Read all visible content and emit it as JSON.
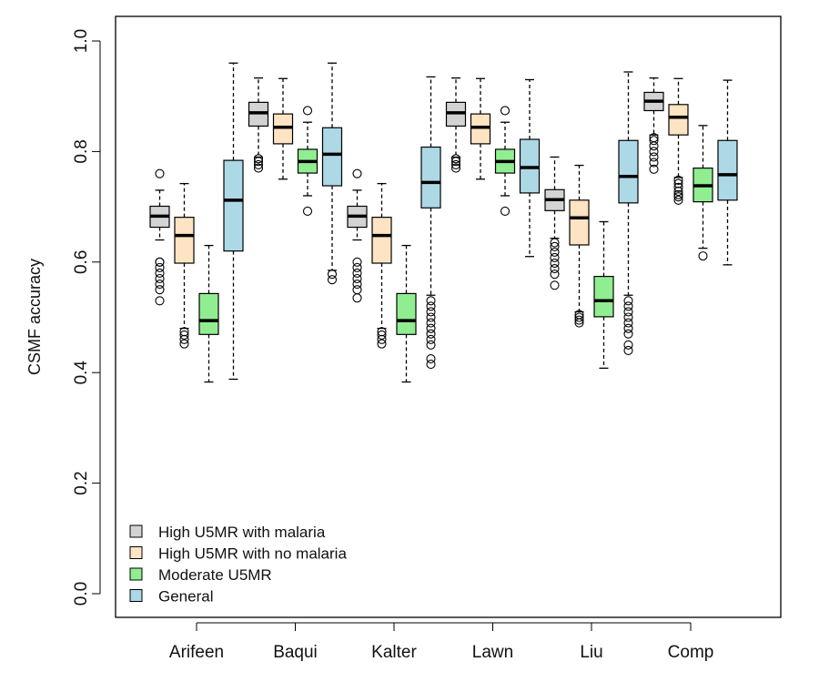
{
  "chart_data": {
    "type": "boxplot",
    "ylabel": "CSMF accuracy",
    "ylim": [
      -0.04,
      1.04
    ],
    "yticks": [
      {
        "value": 0.0,
        "label": "0.0"
      },
      {
        "value": 0.2,
        "label": "0.2"
      },
      {
        "value": 0.4,
        "label": "0.4"
      },
      {
        "value": 0.6,
        "label": "0.6"
      },
      {
        "value": 0.8,
        "label": "0.8"
      },
      {
        "value": 1.0,
        "label": "1.0"
      }
    ],
    "categories": [
      "Arifeen",
      "Baqui",
      "Kalter",
      "Lawn",
      "Liu",
      "Comp"
    ],
    "legend_position": "bottom-left",
    "series": [
      {
        "name": "High U5MR with malaria",
        "color": "#d3d3d3",
        "boxes": [
          {
            "min": 0.64,
            "q1": 0.663,
            "median": 0.683,
            "q3": 0.701,
            "max": 0.73,
            "outliers": [
              0.53,
              0.55,
              0.56,
              0.57,
              0.58,
              0.59,
              0.6,
              0.6,
              0.76
            ]
          },
          {
            "min": 0.79,
            "q1": 0.846,
            "median": 0.87,
            "q3": 0.889,
            "max": 0.933,
            "outliers": [
              0.77,
              0.776,
              0.782,
              0.787
            ]
          },
          {
            "min": 0.64,
            "q1": 0.663,
            "median": 0.683,
            "q3": 0.701,
            "max": 0.73,
            "outliers": [
              0.535,
              0.55,
              0.56,
              0.57,
              0.58,
              0.59,
              0.6,
              0.76
            ]
          },
          {
            "min": 0.79,
            "q1": 0.846,
            "median": 0.87,
            "q3": 0.889,
            "max": 0.933,
            "outliers": [
              0.77,
              0.776,
              0.782,
              0.787
            ]
          },
          {
            "min": 0.643,
            "q1": 0.693,
            "median": 0.713,
            "q3": 0.731,
            "max": 0.79,
            "outliers": [
              0.558,
              0.578,
              0.588,
              0.598,
              0.608,
              0.618,
              0.628,
              0.635
            ]
          },
          {
            "min": 0.83,
            "q1": 0.874,
            "median": 0.891,
            "q3": 0.907,
            "max": 0.933,
            "outliers": [
              0.768,
              0.78,
              0.79,
              0.8,
              0.81,
              0.82,
              0.825
            ]
          }
        ]
      },
      {
        "name": "High U5MR with no malaria",
        "color": "#ffe4c4",
        "boxes": [
          {
            "min": 0.48,
            "q1": 0.598,
            "median": 0.648,
            "q3": 0.681,
            "max": 0.742,
            "outliers": [
              0.452,
              0.46,
              0.468,
              0.474
            ]
          },
          {
            "min": 0.75,
            "q1": 0.814,
            "median": 0.844,
            "q3": 0.868,
            "max": 0.932,
            "outliers": []
          },
          {
            "min": 0.48,
            "q1": 0.598,
            "median": 0.648,
            "q3": 0.681,
            "max": 0.742,
            "outliers": [
              0.452,
              0.46,
              0.468,
              0.474
            ]
          },
          {
            "min": 0.75,
            "q1": 0.814,
            "median": 0.844,
            "q3": 0.868,
            "max": 0.932,
            "outliers": []
          },
          {
            "min": 0.51,
            "q1": 0.631,
            "median": 0.68,
            "q3": 0.712,
            "max": 0.775,
            "outliers": [
              0.49,
              0.495,
              0.5,
              0.505
            ]
          },
          {
            "min": 0.753,
            "q1": 0.83,
            "median": 0.862,
            "q3": 0.885,
            "max": 0.932,
            "outliers": [
              0.712,
              0.718,
              0.722,
              0.728,
              0.735,
              0.742,
              0.748
            ]
          }
        ]
      },
      {
        "name": "Moderate U5MR",
        "color": "#90ee90",
        "boxes": [
          {
            "min": 0.383,
            "q1": 0.469,
            "median": 0.494,
            "q3": 0.543,
            "max": 0.63,
            "outliers": []
          },
          {
            "min": 0.72,
            "q1": 0.761,
            "median": 0.782,
            "q3": 0.804,
            "max": 0.853,
            "outliers": [
              0.692,
              0.874
            ]
          },
          {
            "min": 0.383,
            "q1": 0.469,
            "median": 0.494,
            "q3": 0.543,
            "max": 0.63,
            "outliers": []
          },
          {
            "min": 0.72,
            "q1": 0.761,
            "median": 0.782,
            "q3": 0.804,
            "max": 0.853,
            "outliers": [
              0.692,
              0.874
            ]
          },
          {
            "min": 0.408,
            "q1": 0.501,
            "median": 0.53,
            "q3": 0.574,
            "max": 0.673,
            "outliers": []
          },
          {
            "min": 0.625,
            "q1": 0.709,
            "median": 0.738,
            "q3": 0.77,
            "max": 0.847,
            "outliers": [
              0.611
            ]
          }
        ]
      },
      {
        "name": "General",
        "color": "#add8e6",
        "boxes": [
          {
            "min": 0.388,
            "q1": 0.62,
            "median": 0.712,
            "q3": 0.784,
            "max": 0.96,
            "outliers": []
          },
          {
            "min": 0.585,
            "q1": 0.738,
            "median": 0.795,
            "q3": 0.843,
            "max": 0.96,
            "outliers": [
              0.568,
              0.578
            ]
          },
          {
            "min": 0.54,
            "q1": 0.698,
            "median": 0.744,
            "q3": 0.808,
            "max": 0.935,
            "outliers": [
              0.415,
              0.425,
              0.45,
              0.46,
              0.47,
              0.48,
              0.49,
              0.5,
              0.51,
              0.52,
              0.53
            ]
          },
          {
            "min": 0.61,
            "q1": 0.725,
            "median": 0.771,
            "q3": 0.822,
            "max": 0.93,
            "outliers": []
          },
          {
            "min": 0.54,
            "q1": 0.707,
            "median": 0.755,
            "q3": 0.82,
            "max": 0.944,
            "outliers": [
              0.44,
              0.45,
              0.47,
              0.48,
              0.49,
              0.5,
              0.51,
              0.52,
              0.53
            ]
          },
          {
            "min": 0.595,
            "q1": 0.712,
            "median": 0.758,
            "q3": 0.82,
            "max": 0.929,
            "outliers": []
          }
        ]
      }
    ]
  }
}
